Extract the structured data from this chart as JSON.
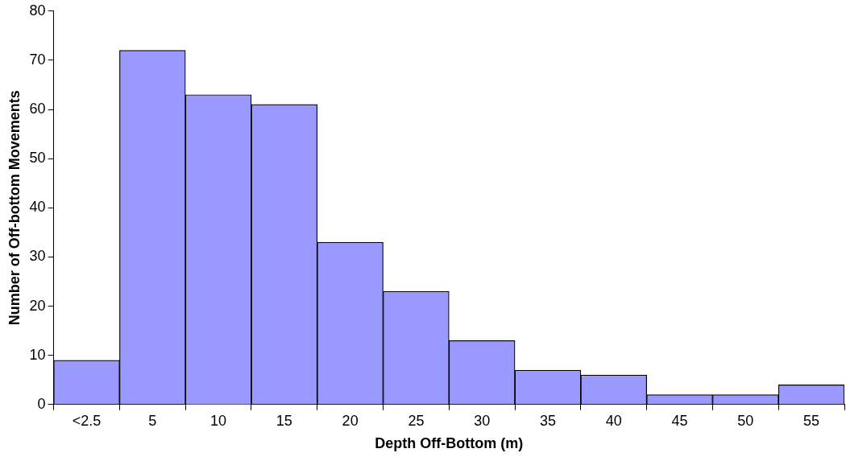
{
  "chart_data": {
    "type": "bar",
    "xlabel": "Depth Off-Bottom (m)",
    "ylabel": "Number of Off-bottom Movements",
    "categories": [
      "<2.5",
      "5",
      "10",
      "15",
      "20",
      "25",
      "30",
      "35",
      "40",
      "45",
      "50",
      "55"
    ],
    "values": [
      9,
      72,
      63,
      61,
      33,
      23,
      13,
      7,
      6,
      2,
      2,
      4
    ],
    "color": "#9999ff",
    "ylim": [
      0,
      80
    ],
    "yticks": [
      0,
      10,
      20,
      30,
      40,
      50,
      60,
      70,
      80
    ],
    "grid": false,
    "legend": false
  }
}
